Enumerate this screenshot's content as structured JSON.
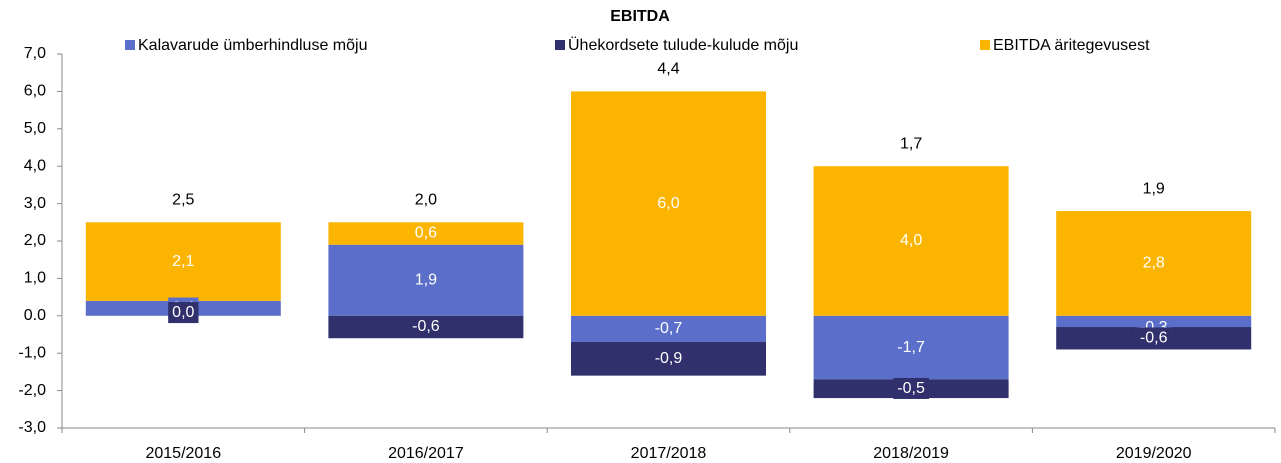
{
  "chart_data": {
    "type": "bar",
    "stacked": true,
    "title": "EBITDA",
    "categories": [
      "2015/2016",
      "2016/2017",
      "2017/2018",
      "2018/2019",
      "2019/2020"
    ],
    "series": [
      {
        "name": "Kalavarude ümberhindluse mõju",
        "color": "#5b6fca",
        "values": [
          0.4,
          1.9,
          -0.7,
          -1.7,
          -0.3
        ],
        "value_labels": [
          "0,4",
          "1,9",
          "-0,7",
          "-1,7",
          "-0,3"
        ]
      },
      {
        "name": "Ühekordsete tulude-kulude mõju",
        "color": "#30306c",
        "values": [
          0.0,
          -0.6,
          -0.9,
          -0.5,
          -0.6
        ],
        "value_labels": [
          "0,0",
          "-0,6",
          "-0,9",
          "-0,5",
          "-0,6"
        ]
      },
      {
        "name": "EBITDA äritegevusest",
        "color": "#fbb400",
        "values": [
          2.1,
          0.6,
          6.0,
          4.0,
          2.8
        ],
        "value_labels": [
          "2,1",
          "0,6",
          "6,0",
          "4,0",
          "2,8"
        ]
      }
    ],
    "totals": {
      "values": [
        2.5,
        2.0,
        4.4,
        1.7,
        1.9
      ],
      "value_labels": [
        "2,5",
        "2,0",
        "4,4",
        "1,7",
        "1,9"
      ]
    },
    "ylim": [
      -3,
      7
    ],
    "yticks": [
      {
        "value": -3,
        "label": "-3,0"
      },
      {
        "value": -2,
        "label": "-2,0"
      },
      {
        "value": -1,
        "label": "-1,0"
      },
      {
        "value": 0,
        "label": "0.0"
      },
      {
        "value": 1,
        "label": "1,0"
      },
      {
        "value": 2,
        "label": "2,0"
      },
      {
        "value": 3,
        "label": "3,0"
      },
      {
        "value": 4,
        "label": "4,0"
      },
      {
        "value": 5,
        "label": "5,0"
      },
      {
        "value": 6,
        "label": "6,0"
      },
      {
        "value": 7,
        "label": "7,0"
      }
    ],
    "legend": "top",
    "grid": false
  }
}
